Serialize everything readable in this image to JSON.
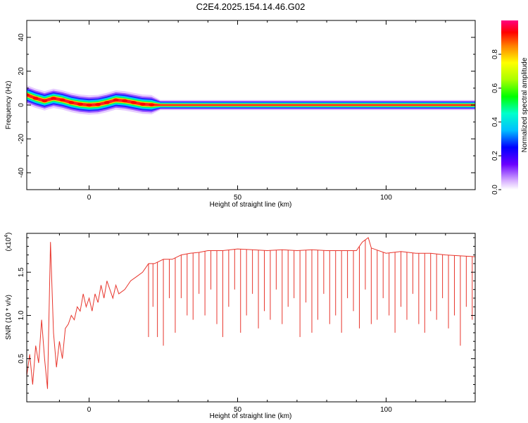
{
  "title": "C2E4.2025.154.14.46.G02",
  "chart_data": [
    {
      "type": "heatmap",
      "xlabel": "Height of straight line (km)",
      "ylabel": "Frequency (Hz)",
      "xlim": [
        -21,
        130
      ],
      "ylim": [
        -50,
        50
      ],
      "xticks": [
        0,
        50,
        100
      ],
      "yticks": [
        -40,
        -20,
        0,
        20,
        40
      ],
      "colorbar": {
        "label": "Normalized spectral amplitude",
        "range": [
          0.0,
          1.0
        ],
        "ticks": [
          "0.0",
          "0.2",
          "0.4",
          "0.6",
          "0.8"
        ],
        "tick_values": [
          0.0,
          0.2,
          0.4,
          0.6,
          0.8
        ]
      },
      "ridge": {
        "x": [
          -21,
          -18,
          -15,
          -12,
          -9,
          -6,
          -3,
          0,
          3,
          6,
          9,
          12,
          15,
          18,
          21,
          24,
          40,
          60,
          80,
          92,
          100,
          130
        ],
        "frequency": [
          6,
          4,
          2.5,
          4,
          3,
          1.5,
          0.5,
          0,
          0.3,
          1.5,
          3,
          2.5,
          1.5,
          0.5,
          0.2,
          0,
          0,
          0,
          0,
          0,
          0,
          0
        ]
      }
    },
    {
      "type": "line",
      "xlabel": "Height of straight line (km)",
      "ylabel": "SNR (10 * v/v)",
      "exponent_label": "(x10",
      "exponent_power": "4",
      "exponent_close": ")",
      "xlim": [
        -21,
        130
      ],
      "ylim": [
        0,
        1.95
      ],
      "xticks": [
        0,
        50,
        100
      ],
      "yticks": [
        0.5,
        1.0,
        1.5
      ],
      "ytick_labels": [
        "0.5",
        "1.0",
        "1.5"
      ],
      "series": [
        {
          "color": "#e8352c",
          "x": [
            -21,
            -20,
            -19,
            -18,
            -17,
            -16,
            -15,
            -14,
            -13,
            -12,
            -11,
            -10,
            -9,
            -8,
            -7,
            -6,
            -5,
            -4,
            -3,
            -2,
            -1,
            0,
            1,
            2,
            3,
            4,
            5,
            6,
            7,
            8,
            9,
            10,
            12,
            14,
            16,
            18,
            20,
            22,
            25,
            28,
            31,
            34,
            37,
            40,
            45,
            50,
            55,
            60,
            65,
            70,
            75,
            80,
            85,
            90,
            92,
            94,
            95,
            100,
            105,
            110,
            115,
            120,
            125,
            130
          ],
          "values": [
            0.3,
            0.55,
            0.2,
            0.65,
            0.45,
            0.95,
            0.5,
            0.15,
            1.85,
            0.8,
            0.4,
            0.7,
            0.5,
            0.85,
            0.9,
            1.0,
            0.95,
            1.1,
            1.05,
            1.25,
            1.1,
            1.2,
            1.05,
            1.25,
            1.15,
            1.35,
            1.2,
            1.4,
            1.3,
            1.2,
            1.35,
            1.25,
            1.3,
            1.4,
            1.45,
            1.5,
            1.6,
            1.6,
            1.65,
            1.65,
            1.7,
            1.72,
            1.73,
            1.75,
            1.75,
            1.77,
            1.76,
            1.75,
            1.76,
            1.75,
            1.76,
            1.75,
            1.75,
            1.75,
            1.85,
            1.9,
            1.78,
            1.72,
            1.74,
            1.72,
            1.72,
            1.7,
            1.69,
            1.68
          ]
        }
      ],
      "dips_x": [
        20,
        21.5,
        23,
        25,
        27,
        29,
        31,
        33,
        35,
        37,
        39,
        41,
        43,
        45,
        47,
        49,
        51,
        53,
        55,
        57,
        59,
        61,
        63,
        65,
        67,
        69,
        71,
        73,
        75,
        77,
        79,
        81,
        83,
        85,
        87,
        89,
        91,
        93,
        95,
        97,
        99,
        101,
        103,
        105,
        107,
        109,
        111,
        113,
        115,
        117,
        119,
        121,
        123,
        125,
        127,
        129
      ],
      "dips_values": [
        0.75,
        1.1,
        0.75,
        0.65,
        1.2,
        0.8,
        1.2,
        1.0,
        0.95,
        1.25,
        1.0,
        1.3,
        0.9,
        0.75,
        1.1,
        1.3,
        0.8,
        1.0,
        1.25,
        0.85,
        1.05,
        0.95,
        1.3,
        0.9,
        1.1,
        1.2,
        0.75,
        1.15,
        0.8,
        0.95,
        1.25,
        0.9,
        1.0,
        0.8,
        1.2,
        1.05,
        0.85,
        1.3,
        0.9,
        0.95,
        1.2,
        1.0,
        0.8,
        1.1,
        0.95,
        1.25,
        0.9,
        0.8,
        1.05,
        0.95,
        1.2,
        0.85,
        1.0,
        0.65,
        1.1,
        0.95
      ]
    }
  ]
}
